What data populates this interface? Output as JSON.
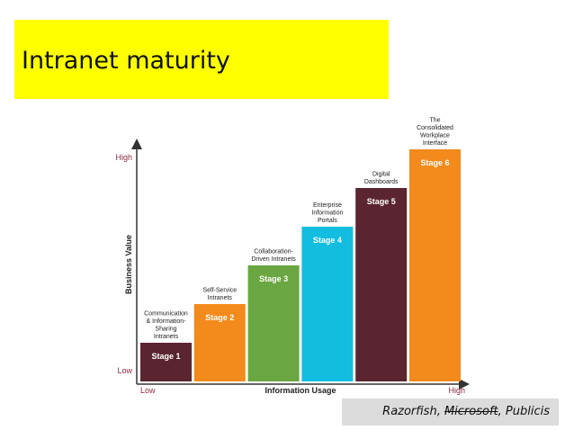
{
  "slide": {
    "title": "Intranet maturity",
    "credit": {
      "part1": "Razorfish, ",
      "struck": "Microsoft",
      "part2": ", Publicis"
    }
  },
  "chart_data": {
    "type": "bar",
    "ylabel": "Business Value",
    "xlabel": "Information Usage",
    "y_low_label": "Low",
    "y_high_label": "High",
    "x_low_label": "Low",
    "x_high_label": "High",
    "stages": [
      {
        "label": "Stage 1",
        "caption": [
          "Communication",
          "& Information-",
          "Sharing",
          "Intranets"
        ],
        "value": 1,
        "color": "#5a2530"
      },
      {
        "label": "Stage 2",
        "caption": [
          "Self-Service",
          "Intranets"
        ],
        "value": 2,
        "color": "#f28a1c"
      },
      {
        "label": "Stage 3",
        "caption": [
          "Collaboration-",
          "Driven Intranets"
        ],
        "value": 3,
        "color": "#6aa641"
      },
      {
        "label": "Stage 4",
        "caption": [
          "Enterprise",
          "Information",
          "Portals"
        ],
        "value": 4,
        "color": "#12bde0"
      },
      {
        "label": "Stage 5",
        "caption": [
          "Digital",
          "Dashboards"
        ],
        "value": 5,
        "color": "#5a2530"
      },
      {
        "label": "Stage 6",
        "caption": [
          "The",
          "Consolidated",
          "Workplace",
          "Interface"
        ],
        "value": 6,
        "color": "#f28a1c"
      }
    ]
  }
}
